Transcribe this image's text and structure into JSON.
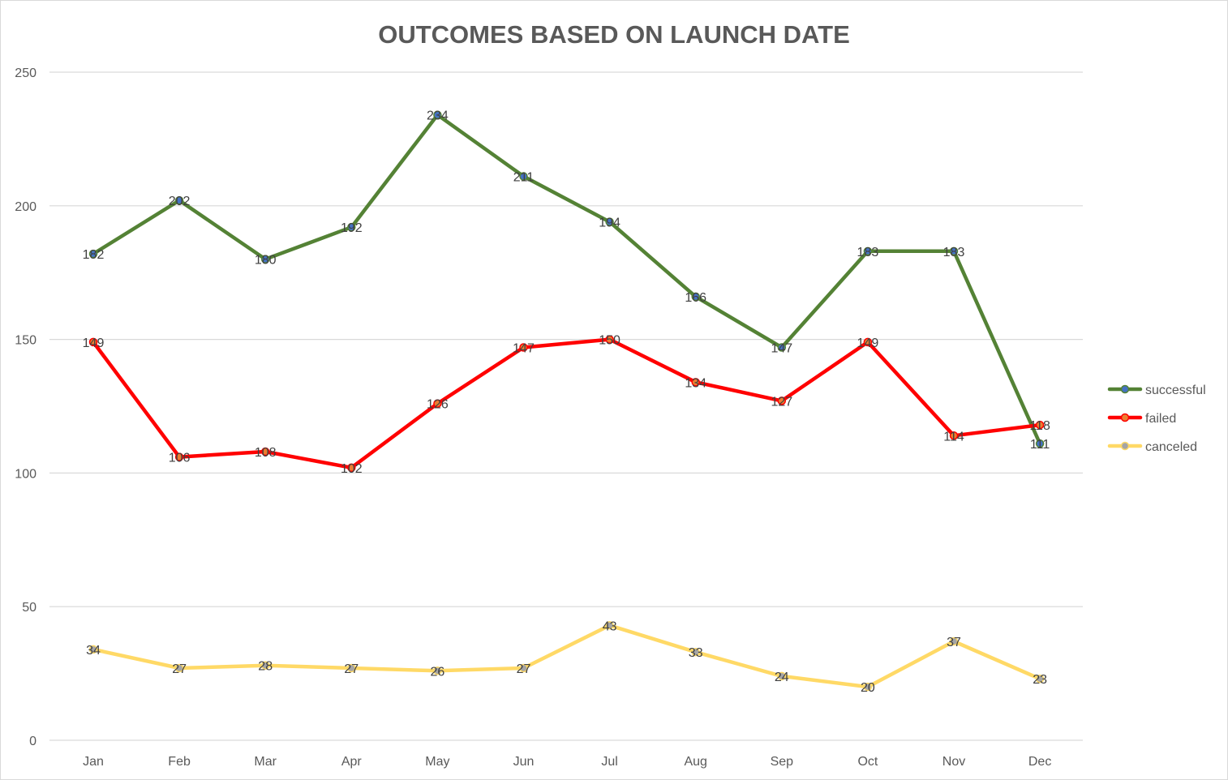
{
  "chart_data": {
    "type": "line",
    "title": "OUTCOMES BASED ON LAUNCH DATE",
    "categories": [
      "Jan",
      "Feb",
      "Mar",
      "Apr",
      "May",
      "Jun",
      "Jul",
      "Aug",
      "Sep",
      "Oct",
      "Nov",
      "Dec"
    ],
    "series": [
      {
        "name": "successful",
        "line_color": "#548235",
        "marker_color": "#4472c4",
        "values": [
          182,
          202,
          180,
          192,
          234,
          211,
          194,
          166,
          147,
          183,
          183,
          111
        ]
      },
      {
        "name": "failed",
        "line_color": "#ff0000",
        "marker_color": "#ed7d31",
        "values": [
          149,
          106,
          108,
          102,
          126,
          147,
          150,
          134,
          127,
          149,
          114,
          118
        ]
      },
      {
        "name": "canceled",
        "line_color": "#ffd966",
        "marker_color": "#a5a5a5",
        "values": [
          34,
          27,
          28,
          27,
          26,
          27,
          43,
          33,
          24,
          20,
          37,
          23
        ]
      }
    ],
    "y_ticks": [
      "0",
      "50",
      "100",
      "150",
      "200",
      "250"
    ],
    "ylim": [
      0,
      250
    ],
    "grid": true,
    "legend_position": "right",
    "gridline_color": "#d9d9d9"
  }
}
